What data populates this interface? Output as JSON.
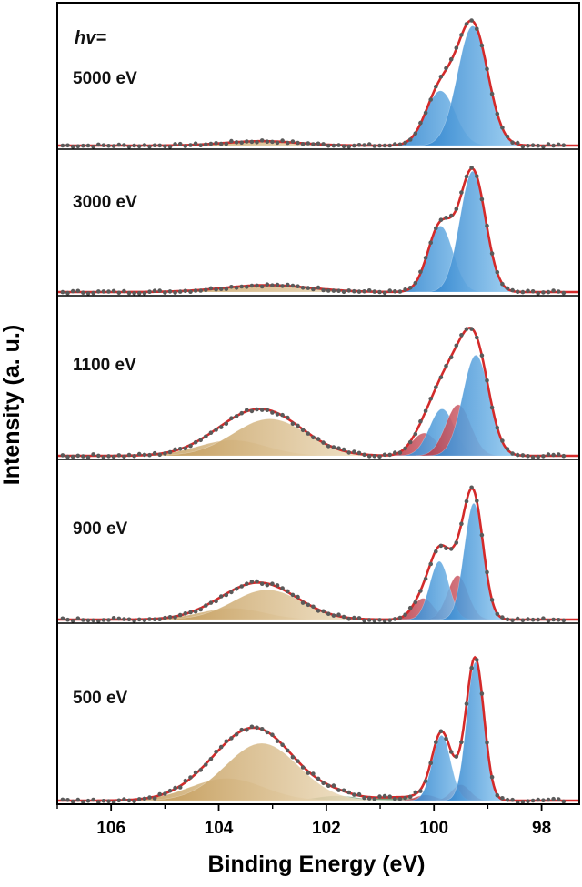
{
  "chart_data": {
    "type": "line",
    "title": "",
    "xlabel": "Binding Energy (eV)",
    "ylabel": "Intensity (a. u.)",
    "x_reversed": true,
    "xlim": [
      107,
      97.3
    ],
    "xticks": [
      106,
      104,
      102,
      100,
      98
    ],
    "grid": false,
    "legend": "none",
    "hv_label": "hv=",
    "colors": {
      "envelope": "#d42a2a",
      "main_component": "#3b95dc",
      "reacted_component": "#c63340",
      "high_be_component": "#c8a468",
      "low_component": "#5c8a5c",
      "data_points": "#5a5a5a"
    },
    "panels": [
      {
        "label": "5000 eV",
        "components": [
          {
            "type": "main",
            "center": 99.28,
            "fwhm": 0.66,
            "height": 0.96
          },
          {
            "type": "main",
            "center": 99.88,
            "fwhm": 0.64,
            "height": 0.44
          },
          {
            "type": "high_be",
            "center": 103.2,
            "fwhm": 1.6,
            "height": 0.035
          }
        ]
      },
      {
        "label": "3000 eV",
        "components": [
          {
            "type": "main",
            "center": 99.28,
            "fwhm": 0.56,
            "height": 0.97
          },
          {
            "type": "main",
            "center": 99.88,
            "fwhm": 0.55,
            "height": 0.53
          },
          {
            "type": "high_be",
            "center": 103.1,
            "fwhm": 1.9,
            "height": 0.055
          }
        ]
      },
      {
        "label": "1100 eV",
        "components": [
          {
            "type": "main",
            "center": 99.22,
            "fwhm": 0.58,
            "height": 0.71
          },
          {
            "type": "main",
            "center": 99.85,
            "fwhm": 0.55,
            "height": 0.33
          },
          {
            "type": "reacted",
            "center": 99.55,
            "fwhm": 0.55,
            "height": 0.36
          },
          {
            "type": "reacted",
            "center": 100.18,
            "fwhm": 0.55,
            "height": 0.16
          },
          {
            "type": "high_be",
            "center": 103.05,
            "fwhm": 1.6,
            "height": 0.26
          },
          {
            "type": "high_be",
            "center": 103.75,
            "fwhm": 1.5,
            "height": 0.11
          }
        ]
      },
      {
        "label": "900 eV",
        "components": [
          {
            "type": "main",
            "center": 99.26,
            "fwhm": 0.42,
            "height": 0.82
          },
          {
            "type": "main",
            "center": 99.9,
            "fwhm": 0.42,
            "height": 0.41
          },
          {
            "type": "reacted",
            "center": 99.56,
            "fwhm": 0.45,
            "height": 0.31
          },
          {
            "type": "reacted",
            "center": 100.2,
            "fwhm": 0.45,
            "height": 0.15
          },
          {
            "type": "high_be",
            "center": 103.1,
            "fwhm": 1.5,
            "height": 0.21
          },
          {
            "type": "high_be",
            "center": 103.75,
            "fwhm": 1.4,
            "height": 0.08
          }
        ]
      },
      {
        "label": "500 eV",
        "components": [
          {
            "type": "main",
            "center": 99.23,
            "fwhm": 0.38,
            "height": 0.87
          },
          {
            "type": "main",
            "center": 99.86,
            "fwhm": 0.4,
            "height": 0.41
          },
          {
            "type": "reacted",
            "center": 99.5,
            "fwhm": 0.4,
            "height": 0.1
          },
          {
            "type": "reacted",
            "center": 100.15,
            "fwhm": 0.45,
            "height": 0.035
          },
          {
            "type": "high_be",
            "center": 103.2,
            "fwhm": 1.6,
            "height": 0.36
          },
          {
            "type": "high_be",
            "center": 103.85,
            "fwhm": 1.6,
            "height": 0.14
          },
          {
            "type": "low",
            "center": 101.8,
            "fwhm": 0.9,
            "height": 0.03
          },
          {
            "type": "low",
            "center": 100.7,
            "fwhm": 0.9,
            "height": 0.02
          }
        ]
      }
    ]
  }
}
